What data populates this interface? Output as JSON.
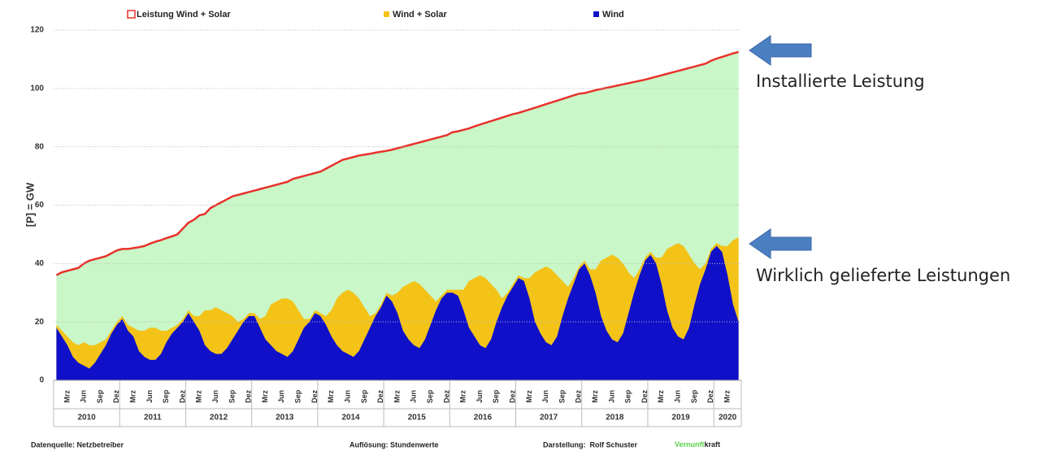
{
  "chart_data": {
    "type": "area",
    "ylabel": "[P]  =  GW",
    "ylim": [
      0,
      120
    ],
    "yticks": [
      0,
      20,
      40,
      60,
      80,
      100,
      120
    ],
    "grid": true,
    "categories": [
      null,
      null,
      "Mrz",
      null,
      null,
      "Jun",
      null,
      null,
      "Sep",
      null,
      null,
      "Dez",
      null,
      null,
      "Mrz",
      null,
      null,
      "Jun",
      null,
      null,
      "Sep",
      null,
      null,
      "Dez",
      null,
      null,
      "Mrz",
      null,
      null,
      "Jun",
      null,
      null,
      "Sep",
      null,
      null,
      "Dez",
      null,
      null,
      "Mrz",
      null,
      null,
      "Jun",
      null,
      null,
      "Sep",
      null,
      null,
      "Dez",
      null,
      null,
      "Mrz",
      null,
      null,
      "Jun",
      null,
      null,
      "Sep",
      null,
      null,
      "Dez",
      null,
      null,
      "Mrz",
      null,
      null,
      "Jun",
      null,
      null,
      "Sep",
      null,
      null,
      "Dez",
      null,
      null,
      "Mrz",
      null,
      null,
      "Jun",
      null,
      null,
      "Sep",
      null,
      null,
      "Dez",
      null,
      null,
      "Mrz",
      null,
      null,
      "Jun",
      null,
      null,
      "Sep",
      null,
      null,
      "Dez",
      null,
      null,
      "Mrz",
      null,
      null,
      "Jun",
      null,
      null,
      "Sep",
      null,
      null,
      "Dez",
      null,
      null,
      "Mrz",
      null,
      null,
      "Jun",
      null,
      null,
      "Sep",
      null,
      null,
      "Dez",
      null,
      null,
      "Mrz",
      null,
      null
    ],
    "years": [
      "2010",
      "2011",
      "2012",
      "2013",
      "2014",
      "2015",
      "2016",
      "2017",
      "2018",
      "2019",
      "2020"
    ],
    "series": [
      {
        "name": "Leistung Wind + Solar",
        "color": "#e8322b",
        "area_color": "#c9f7c8",
        "style": "line",
        "values": [
          36,
          37,
          37.5,
          38,
          38.5,
          40,
          41,
          41.5,
          42,
          42.5,
          43.5,
          44.5,
          45,
          45,
          45.3,
          45.6,
          46,
          46.8,
          47.5,
          48,
          48.7,
          49.3,
          50,
          52,
          54,
          55,
          56.5,
          57,
          59,
          60,
          61,
          62,
          63,
          63.5,
          64,
          64.5,
          65,
          65.5,
          66,
          66.5,
          67,
          67.5,
          68,
          69,
          69.5,
          70,
          70.5,
          71,
          71.5,
          72.5,
          73.5,
          74.5,
          75.5,
          76,
          76.5,
          77,
          77.3,
          77.6,
          78,
          78.3,
          78.6,
          79,
          79.5,
          80,
          80.5,
          81,
          81.5,
          82,
          82.5,
          83,
          83.5,
          84,
          85,
          85.3,
          85.8,
          86.3,
          87,
          87.6,
          88.2,
          88.8,
          89.4,
          90,
          90.6,
          91.2,
          91.6,
          92.2,
          92.8,
          93.4,
          94,
          94.6,
          95.2,
          95.8,
          96.4,
          97,
          97.6,
          98.2,
          98.4,
          98.9,
          99.4,
          99.8,
          100.2,
          100.6,
          101,
          101.4,
          101.8,
          102.2,
          102.6,
          103,
          103.5,
          104,
          104.5,
          105,
          105.5,
          106,
          106.5,
          107,
          107.5,
          108,
          108.5,
          109.5,
          110.2,
          110.8,
          111.4,
          112,
          112.5
        ]
      },
      {
        "name": "Wind + Solar",
        "color": "#f3c318",
        "style": "area",
        "values": [
          19,
          17,
          15,
          13,
          12,
          13,
          12,
          12,
          13,
          14,
          17,
          20,
          22,
          19,
          18,
          17,
          17,
          18,
          18,
          17,
          17,
          18,
          19,
          21,
          24,
          22,
          22,
          24,
          24,
          25,
          24,
          23,
          22,
          20,
          21,
          23,
          23,
          21,
          22,
          26,
          27,
          28,
          28,
          27,
          24,
          21,
          21,
          24,
          23,
          22,
          24,
          28,
          30,
          31,
          30,
          28,
          25,
          22,
          23,
          26,
          30,
          29,
          30,
          32,
          33,
          34,
          33,
          31,
          29,
          27,
          29,
          31,
          31,
          31,
          31,
          34,
          35,
          36,
          35,
          33,
          31,
          28,
          30,
          33,
          36,
          35,
          35,
          37,
          38,
          39,
          38,
          36,
          34,
          32,
          35,
          39,
          41,
          38,
          38,
          41,
          42,
          43,
          42,
          40,
          37,
          35,
          38,
          42,
          44,
          42,
          42,
          45,
          46,
          47,
          46,
          43,
          40,
          38,
          40,
          45,
          47,
          46,
          46,
          48,
          49
        ]
      },
      {
        "name": "Wind",
        "color": "#1010c8",
        "style": "area",
        "values": [
          18,
          15,
          12,
          8,
          6,
          5,
          4,
          6,
          9,
          12,
          16,
          19,
          21,
          17,
          15,
          10,
          8,
          7,
          7,
          9,
          13,
          16,
          18,
          20,
          23,
          20,
          17,
          12,
          10,
          9,
          9,
          11,
          14,
          17,
          20,
          22,
          22,
          18,
          14,
          12,
          10,
          9,
          8,
          10,
          14,
          18,
          20,
          23,
          22,
          19,
          15,
          12,
          10,
          9,
          8,
          10,
          14,
          18,
          22,
          25,
          29,
          27,
          23,
          17,
          14,
          12,
          11,
          14,
          19,
          24,
          28,
          30,
          30,
          29,
          24,
          18,
          15,
          12,
          11,
          14,
          20,
          25,
          29,
          32,
          35,
          34,
          28,
          20,
          16,
          13,
          12,
          15,
          22,
          28,
          33,
          38,
          40,
          36,
          30,
          22,
          17,
          14,
          13,
          16,
          23,
          30,
          36,
          41,
          43,
          40,
          33,
          24,
          18,
          15,
          14,
          18,
          26,
          33,
          38,
          44,
          46,
          44,
          36,
          26,
          20
        ]
      }
    ],
    "annotations": [
      "Installierte Leistung",
      "Wirklich gelieferte Leistungen"
    ],
    "source": "Datenquelle: Netzbetreiber",
    "resolution": "Auflösung: Stundenwerte",
    "credit": "Darstellung:  Rolf Schuster",
    "brand": [
      "Vernunft",
      "kraft"
    ]
  }
}
